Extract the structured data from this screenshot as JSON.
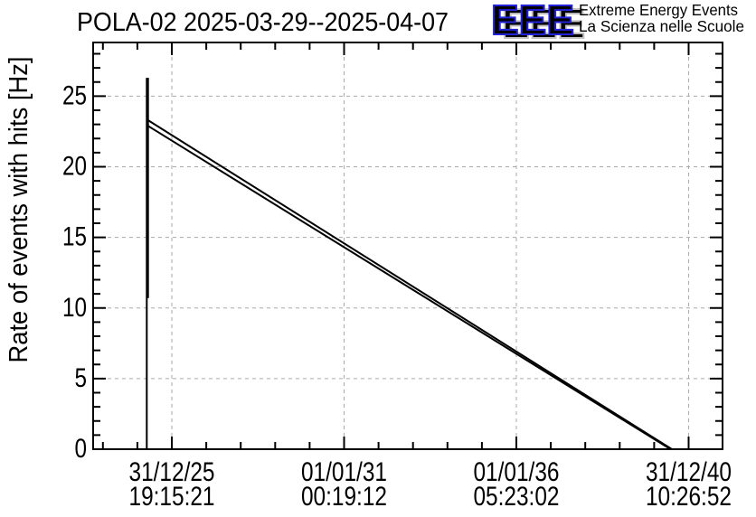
{
  "page": {
    "background": "#ffffff"
  },
  "header": {
    "title": "POLA-02 2025-03-29--2025-04-07",
    "logo": {
      "text": "EEE",
      "tagline1": "Extreme Energy Events",
      "tagline2": "La Scienza nelle Scuole",
      "blue": "#2222DB",
      "tagline_blue": "#3030E8",
      "shadow_gray": "#C3C3C3"
    }
  },
  "chart_data": {
    "type": "line",
    "title": "POLA-02 2025-03-29--2025-04-07",
    "ylabel": "Rate of events with hits [Hz]",
    "xlabel": "",
    "ylim": [
      0,
      28.8
    ],
    "y_unit": "Hz",
    "y_major_ticks": [
      0,
      5,
      10,
      15,
      20,
      25
    ],
    "y_minor_step": 1,
    "grid": {
      "style": "dashed",
      "color": "#AAAAAA"
    },
    "legend": "none",
    "x_axis": {
      "minor_divisions": 5,
      "ticks": [
        {
          "pos": 0.125,
          "date": "31/12/25",
          "time": "19:15:21"
        },
        {
          "pos": 0.3987,
          "date": "01/01/31",
          "time": "00:19:12"
        },
        {
          "pos": 0.6724,
          "date": "01/01/36",
          "time": "05:23:02"
        },
        {
          "pos": 0.9461,
          "date": "31/12/40",
          "time": "10:26:52"
        }
      ]
    },
    "series": [
      {
        "name": "initial-spike",
        "color": "#000000",
        "width": 2,
        "points_xfrac_yhz": [
          [
            0.0852,
            0
          ],
          [
            0.0852,
            26.3
          ]
        ]
      },
      {
        "name": "initial-spike-overlay",
        "color": "#000000",
        "width": 1.8,
        "points_xfrac_yhz": [
          [
            0.0873,
            10.7
          ],
          [
            0.0873,
            26.3
          ]
        ]
      },
      {
        "name": "rate-trend-upper",
        "color": "#000000",
        "width": 2,
        "points_xfrac_yhz": [
          [
            0.0869,
            23.3
          ],
          [
            0.9195,
            0
          ]
        ]
      },
      {
        "name": "rate-trend-lower",
        "color": "#000000",
        "width": 2,
        "points_xfrac_yhz": [
          [
            0.0869,
            22.9
          ],
          [
            0.9174,
            0
          ]
        ]
      }
    ]
  }
}
